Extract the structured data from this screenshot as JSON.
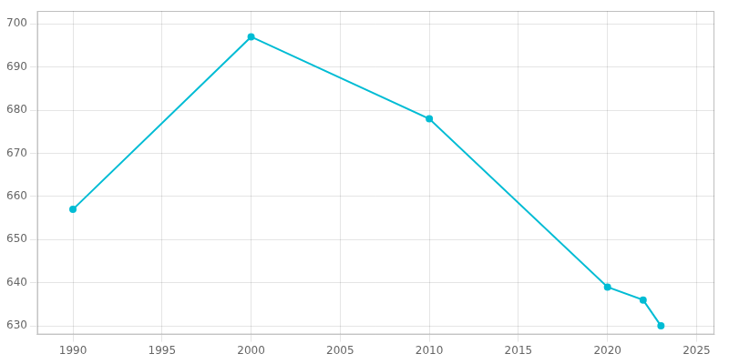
{
  "chart_data": {
    "type": "line",
    "x": [
      1990,
      2000,
      2010,
      2020,
      2022,
      2023
    ],
    "values": [
      657,
      697,
      678,
      639,
      636,
      630
    ],
    "color": "#00bcd4",
    "marker": "circle",
    "xlim": [
      1988,
      2026
    ],
    "xticks": [
      1990,
      1995,
      2000,
      2005,
      2010,
      2015,
      2020,
      2025
    ],
    "ylim": [
      628,
      703
    ],
    "yticks": [
      630,
      640,
      650,
      660,
      670,
      680,
      690,
      700
    ],
    "grid": true
  }
}
